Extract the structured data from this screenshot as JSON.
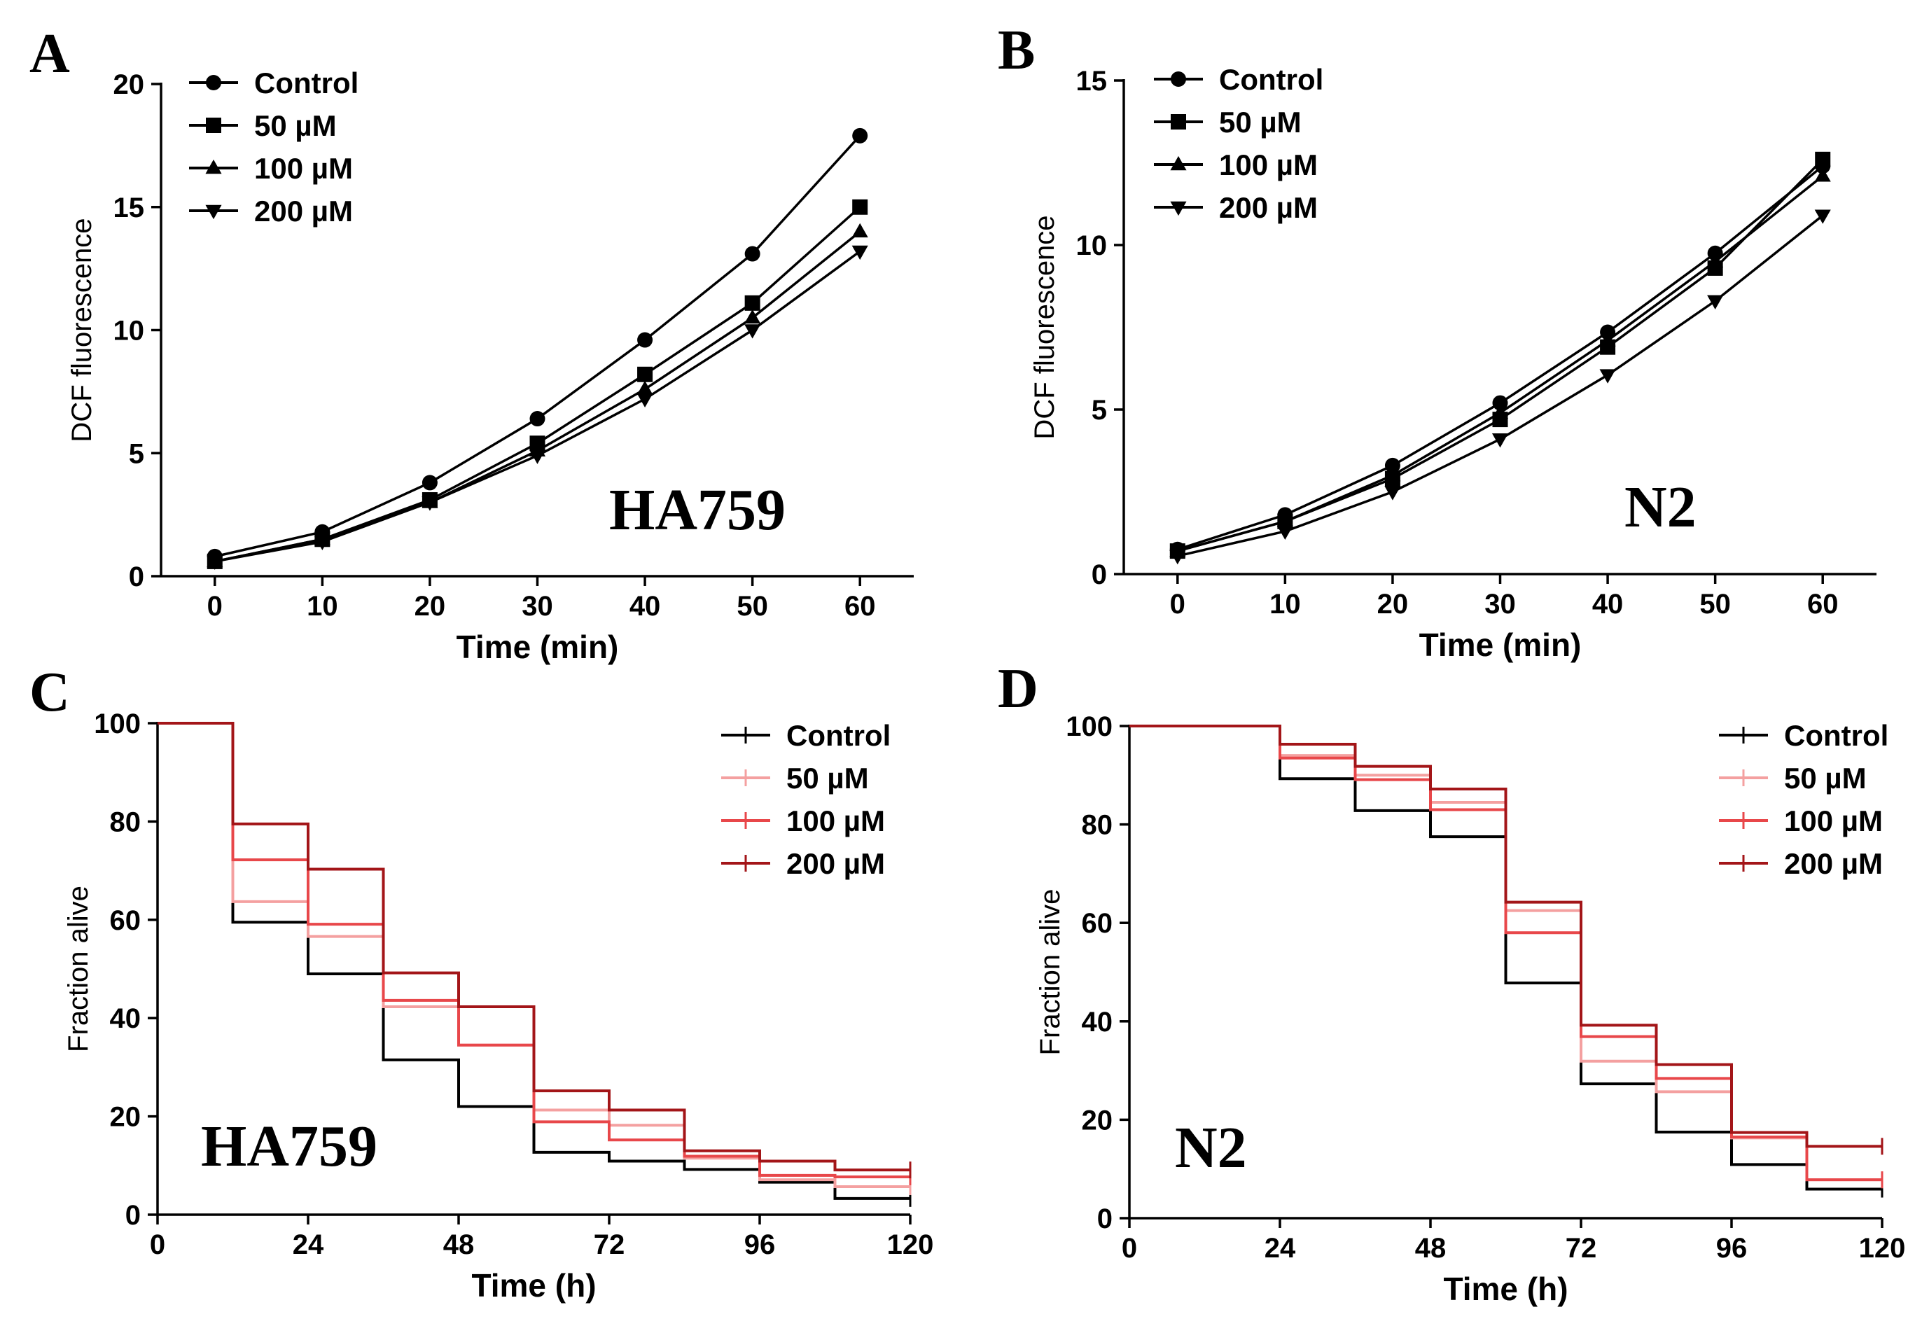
{
  "colors": {
    "control": "#000000",
    "um50": "#f4a0a0",
    "um100": "#e8474a",
    "um200": "#a31518"
  },
  "chart_data": [
    {
      "id": "A",
      "panel_letter": "A",
      "type": "line",
      "inset_label": "HA759",
      "xlabel": "Time (min)",
      "ylabel": "DCF fluorescence",
      "xlim": [
        -5,
        65
      ],
      "ylim": [
        0,
        20
      ],
      "xticks": [
        0,
        10,
        20,
        30,
        40,
        50,
        60
      ],
      "yticks": [
        0,
        5,
        10,
        15,
        20
      ],
      "legend_position": "top-left",
      "series": [
        {
          "name": "Control",
          "marker": "circle",
          "color": "#000000",
          "x": [
            0,
            10,
            20,
            30,
            40,
            50,
            60
          ],
          "y": [
            0.8,
            1.8,
            3.8,
            6.4,
            9.6,
            13.1,
            17.9
          ]
        },
        {
          "name": "50 µM",
          "marker": "square",
          "color": "#000000",
          "x": [
            0,
            10,
            20,
            30,
            40,
            50,
            60
          ],
          "y": [
            0.6,
            1.5,
            3.1,
            5.4,
            8.2,
            11.1,
            15.0
          ]
        },
        {
          "name": "100 µM",
          "marker": "triangle-up",
          "color": "#000000",
          "x": [
            0,
            10,
            20,
            30,
            40,
            50,
            60
          ],
          "y": [
            0.6,
            1.5,
            3.0,
            5.1,
            7.6,
            10.5,
            14.0
          ]
        },
        {
          "name": "200 µM",
          "marker": "triangle-down",
          "color": "#000000",
          "x": [
            0,
            10,
            20,
            30,
            40,
            50,
            60
          ],
          "y": [
            0.6,
            1.4,
            3.0,
            4.9,
            7.2,
            10.0,
            13.2
          ]
        }
      ]
    },
    {
      "id": "B",
      "panel_letter": "B",
      "type": "line",
      "inset_label": "N2",
      "xlabel": "Time (min)",
      "ylabel": "DCF fluorescence",
      "xlim": [
        -5,
        65
      ],
      "ylim": [
        0,
        15
      ],
      "xticks": [
        0,
        10,
        20,
        30,
        40,
        50,
        60
      ],
      "yticks": [
        0,
        5,
        10,
        15
      ],
      "legend_position": "top-left",
      "series": [
        {
          "name": "Control",
          "marker": "circle",
          "color": "#000000",
          "x": [
            0,
            10,
            20,
            30,
            40,
            50,
            60
          ],
          "y": [
            0.75,
            1.8,
            3.3,
            5.2,
            7.35,
            9.75,
            12.4
          ]
        },
        {
          "name": "50 µM",
          "marker": "square",
          "color": "#000000",
          "x": [
            0,
            10,
            20,
            30,
            40,
            50,
            60
          ],
          "y": [
            0.7,
            1.6,
            2.9,
            4.7,
            6.9,
            9.3,
            12.6
          ]
        },
        {
          "name": "100 µM",
          "marker": "triangle-up",
          "color": "#000000",
          "x": [
            0,
            10,
            20,
            30,
            40,
            50,
            60
          ],
          "y": [
            0.7,
            1.6,
            3.0,
            4.9,
            7.1,
            9.5,
            12.1
          ]
        },
        {
          "name": "200 µM",
          "marker": "triangle-down",
          "color": "#000000",
          "x": [
            0,
            10,
            20,
            30,
            40,
            50,
            60
          ],
          "y": [
            0.55,
            1.3,
            2.5,
            4.1,
            6.05,
            8.3,
            10.9
          ]
        }
      ]
    },
    {
      "id": "C",
      "panel_letter": "C",
      "type": "step",
      "inset_label": "HA759",
      "xlabel": "Time (h)",
      "ylabel": "Fraction alive",
      "xlim": [
        0,
        120
      ],
      "ylim": [
        0,
        100
      ],
      "xticks": [
        0,
        24,
        48,
        72,
        96,
        120
      ],
      "yticks": [
        0,
        20,
        40,
        60,
        80,
        100
      ],
      "legend_position": "top-right",
      "series": [
        {
          "name": "Control",
          "color": "#000000",
          "x": [
            0,
            12,
            24,
            36,
            48,
            60,
            72,
            84,
            96,
            108,
            120
          ],
          "y": [
            100,
            59.5,
            49,
            31.5,
            22,
            12.7,
            10.9,
            9.2,
            6.6,
            3.3,
            3.3
          ]
        },
        {
          "name": "50 µM",
          "color": "#f4a0a0",
          "x": [
            0,
            12,
            24,
            36,
            48,
            60,
            72,
            84,
            96,
            108,
            120
          ],
          "y": [
            100,
            63.7,
            56.6,
            42.3,
            34.5,
            21.3,
            18.2,
            11.5,
            7.1,
            5.7,
            5.7
          ]
        },
        {
          "name": "100 µM",
          "color": "#e8474a",
          "x": [
            0,
            12,
            24,
            36,
            48,
            60,
            72,
            84,
            96,
            108,
            120
          ],
          "y": [
            100,
            72.2,
            59.1,
            43.6,
            34.5,
            18.9,
            15.2,
            11.9,
            8.0,
            7.7,
            7.7
          ]
        },
        {
          "name": "200 µM",
          "color": "#a31518",
          "x": [
            0,
            12,
            24,
            36,
            48,
            60,
            72,
            84,
            96,
            108,
            120
          ],
          "y": [
            100,
            79.5,
            70.3,
            49.2,
            42.3,
            25.2,
            21.3,
            13.0,
            10.9,
            9.1,
            9.1
          ]
        }
      ]
    },
    {
      "id": "D",
      "panel_letter": "D",
      "type": "step",
      "inset_label": "N2",
      "xlabel": "Time (h)",
      "ylabel": "Fraction alive",
      "xlim": [
        0,
        120
      ],
      "ylim": [
        0,
        100
      ],
      "xticks": [
        0,
        24,
        48,
        72,
        96,
        120
      ],
      "yticks": [
        0,
        20,
        40,
        60,
        80,
        100
      ],
      "legend_position": "top-right",
      "series": [
        {
          "name": "Control",
          "color": "#000000",
          "x": [
            0,
            24,
            36,
            48,
            60,
            72,
            84,
            96,
            108,
            120
          ],
          "y": [
            100,
            89.3,
            82.8,
            77.5,
            47.8,
            27.3,
            17.5,
            10.9,
            5.9,
            5.9
          ]
        },
        {
          "name": "50 µM",
          "color": "#f4a0a0",
          "x": [
            0,
            24,
            36,
            48,
            60,
            72,
            84,
            96,
            108,
            120
          ],
          "y": [
            100,
            94.0,
            90.0,
            84.5,
            62.5,
            31.9,
            25.7,
            16.3,
            7.8,
            7.8
          ]
        },
        {
          "name": "100 µM",
          "color": "#e8474a",
          "x": [
            0,
            24,
            36,
            48,
            60,
            72,
            84,
            96,
            108,
            120
          ],
          "y": [
            100,
            93.5,
            89.1,
            83.0,
            58.0,
            36.9,
            28.4,
            16.5,
            7.8,
            7.8
          ]
        },
        {
          "name": "200 µM",
          "color": "#a31518",
          "x": [
            0,
            24,
            36,
            48,
            60,
            72,
            84,
            96,
            108,
            120
          ],
          "y": [
            100,
            96.3,
            91.8,
            87.2,
            64.2,
            39.2,
            31.2,
            17.4,
            14.6,
            14.6
          ]
        }
      ]
    }
  ]
}
